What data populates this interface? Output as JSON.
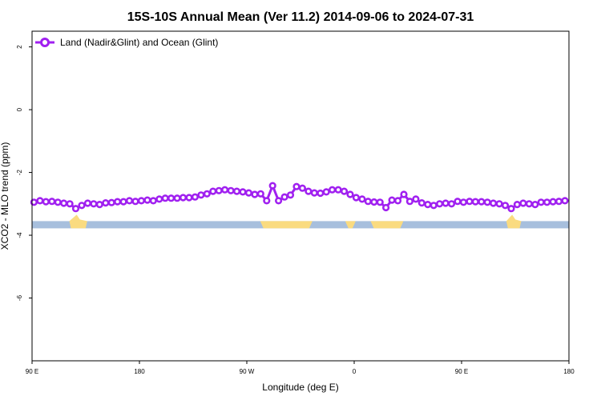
{
  "chart_data": {
    "type": "line",
    "title": "15S-10S Annual Mean (Ver 11.2)   2014-09-06 to 2024-07-31",
    "xlabel": "Longitude (deg E)",
    "ylabel": "XCO2 - MLO trend (ppm)",
    "xlim": [
      90,
      450
    ],
    "ylim": [
      -8,
      2.5
    ],
    "x_ticks": [
      {
        "value": 90,
        "label": "90 E"
      },
      {
        "value": 162,
        "label": "180"
      },
      {
        "value": 234,
        "label": "90 W"
      },
      {
        "value": 306,
        "label": "0"
      },
      {
        "value": 378,
        "label": "90 E"
      },
      {
        "value": 450,
        "label": "180"
      }
    ],
    "y_ticks": [
      {
        "value": 2,
        "label": "2"
      },
      {
        "value": 0,
        "label": "0"
      },
      {
        "value": -2,
        "label": "-2"
      },
      {
        "value": -4,
        "label": "-4"
      },
      {
        "value": -6,
        "label": "-6"
      }
    ],
    "grid": false,
    "legend": {
      "position": "top-left"
    },
    "series": [
      {
        "name": "Land (Nadir&Glint) and Ocean (Glint)",
        "color": "#a020f0",
        "x": [
          91.3,
          95.3,
          99.3,
          103.3,
          107.3,
          111.3,
          115.3,
          119.3,
          123.3,
          127.3,
          131.3,
          135.3,
          139.3,
          143.3,
          147.3,
          151.3,
          155.3,
          159.3,
          163.3,
          167.3,
          171.3,
          175.3,
          179.3,
          183.3,
          187.3,
          191.3,
          195.3,
          199.3,
          203.3,
          207.3,
          211.3,
          215.3,
          219.3,
          223.3,
          227.3,
          231.3,
          235.3,
          239.3,
          243.3,
          247.3,
          251.3,
          255.3,
          259.3,
          263.3,
          267.3,
          271.3,
          275.3,
          279.3,
          283.3,
          287.3,
          291.3,
          295.3,
          299.3,
          303.3,
          307.3,
          311.3,
          315.3,
          319.3,
          323.3,
          327.3,
          331.3,
          335.3,
          339.3,
          343.3,
          347.3,
          351.3,
          355.3,
          359.3,
          363.3,
          367.3,
          371.3,
          375.3,
          379.3,
          383.3,
          387.3,
          391.3,
          395.3,
          399.3,
          403.3,
          407.3,
          411.3,
          415.3,
          419.3,
          423.3,
          427.3,
          431.3,
          435.3,
          439.3,
          443.3,
          447.3
        ],
        "values": [
          -2.95,
          -2.9,
          -2.93,
          -2.92,
          -2.95,
          -2.98,
          -3.0,
          -3.15,
          -3.05,
          -2.98,
          -3.0,
          -3.02,
          -2.97,
          -2.96,
          -2.93,
          -2.93,
          -2.9,
          -2.92,
          -2.9,
          -2.88,
          -2.9,
          -2.85,
          -2.82,
          -2.82,
          -2.82,
          -2.8,
          -2.8,
          -2.78,
          -2.72,
          -2.68,
          -2.6,
          -2.58,
          -2.55,
          -2.58,
          -2.6,
          -2.62,
          -2.65,
          -2.7,
          -2.68,
          -2.9,
          -2.42,
          -2.9,
          -2.78,
          -2.72,
          -2.45,
          -2.5,
          -2.6,
          -2.65,
          -2.66,
          -2.62,
          -2.55,
          -2.55,
          -2.6,
          -2.7,
          -2.8,
          -2.85,
          -2.92,
          -2.94,
          -2.95,
          -3.12,
          -2.88,
          -2.9,
          -2.7,
          -2.92,
          -2.85,
          -2.97,
          -3.02,
          -3.05,
          -3.0,
          -2.98,
          -3.0,
          -2.92,
          -2.95,
          -2.92,
          -2.93,
          -2.93,
          -2.95,
          -2.98,
          -3.0,
          -3.05,
          -3.15,
          -3.02,
          -2.98,
          -3.0,
          -3.02,
          -2.95,
          -2.95,
          -2.93,
          -2.92,
          -2.9
        ]
      }
    ],
    "surface_strip": {
      "y_top": -3.55,
      "y_bottom": -3.78,
      "ocean_color": "#a7bfdd",
      "land_color": "#fadb80",
      "land_spans": [
        {
          "from": 243,
          "to": 278
        },
        {
          "from": 300,
          "to": 307
        },
        {
          "from": 317,
          "to": 339
        }
      ],
      "land_bumps": [
        {
          "from": 115,
          "to": 127
        },
        {
          "from": 408,
          "to": 418
        }
      ]
    }
  }
}
